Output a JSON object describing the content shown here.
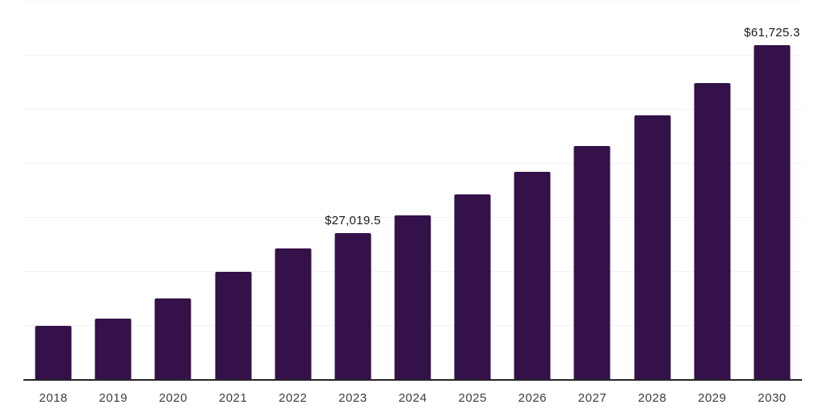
{
  "chart_data": {
    "type": "bar",
    "title": "",
    "xlabel": "",
    "ylabel": "",
    "categories": [
      "2018",
      "2019",
      "2020",
      "2021",
      "2022",
      "2023",
      "2024",
      "2025",
      "2026",
      "2027",
      "2028",
      "2029",
      "2030"
    ],
    "values": [
      9900,
      11200,
      14900,
      19800,
      24250,
      27019.5,
      30300,
      34200,
      38400,
      43200,
      48800,
      54750,
      61725.3
    ],
    "point_labels": [
      "",
      "",
      "",
      "",
      "",
      "$27,019.5",
      "",
      "",
      "",
      "",
      "",
      "",
      "$61,725.3"
    ],
    "ylim": [
      0,
      70000
    ],
    "grid_interval": 10000,
    "grid": "horizontal-light-gray",
    "legend": "none",
    "colors": {
      "bar": "#341149",
      "axis_line": "#262626",
      "gridline": "#f2f2f2",
      "tick_label": "#3d3d3d",
      "value_label": "#1a1a1a",
      "background": "#ffffff"
    }
  }
}
